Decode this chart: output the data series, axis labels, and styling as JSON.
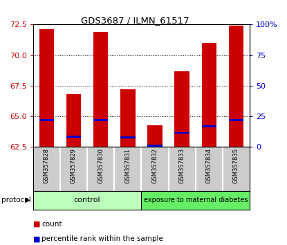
{
  "title": "GDS3687 / ILMN_61517",
  "samples": [
    "GSM357828",
    "GSM357829",
    "GSM357830",
    "GSM357831",
    "GSM357832",
    "GSM357833",
    "GSM357834",
    "GSM357835"
  ],
  "count_values": [
    72.1,
    66.8,
    71.9,
    67.2,
    64.3,
    68.7,
    71.0,
    72.4
  ],
  "percentile_values": [
    64.7,
    63.35,
    64.7,
    63.3,
    62.6,
    63.65,
    64.2,
    64.7
  ],
  "baseline": 62.5,
  "ylim_left": [
    62.5,
    72.5
  ],
  "ylim_right": [
    0,
    100
  ],
  "yticks_left": [
    62.5,
    65.0,
    67.5,
    70.0,
    72.5
  ],
  "yticks_right": [
    0,
    25,
    50,
    75,
    100
  ],
  "ytick_labels_right": [
    "0",
    "25",
    "50",
    "75",
    "100%"
  ],
  "control_samples": 4,
  "group_labels": [
    "control",
    "exposure to maternal diabetes"
  ],
  "bar_color": "#cc0000",
  "percentile_color": "#0000cc",
  "bg_color": "#ffffff",
  "axis_label_color_left": "#cc0000",
  "axis_label_color_right": "#0000cc",
  "grid_color": "#000000",
  "bar_width": 0.55,
  "sample_bg_color": "#cccccc",
  "control_color": "#bbffbb",
  "exposure_color": "#66ee66",
  "pct_bar_height": 0.15
}
